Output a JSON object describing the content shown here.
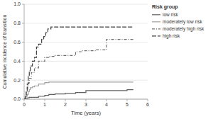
{
  "chart_data": {
    "type": "step",
    "xlabel": "Time (years)",
    "ylabel": "Cumulative incidence of transition",
    "xlim": [
      0,
      6
    ],
    "ylim": [
      0,
      1.0
    ],
    "xticks": [
      0,
      1,
      2,
      3,
      4,
      5,
      6
    ],
    "yticks": [
      {
        "value": 0.0,
        "label": "0.0"
      },
      0.2,
      0.4,
      0.6,
      0.8,
      {
        "value": 1.0,
        "label": "1.0"
      }
    ],
    "grid": true,
    "legend": "upper right",
    "legend_title": "Risk group",
    "series": [
      {
        "name": "low risk",
        "color": "#606060",
        "line_style": "solid",
        "x": [
          0,
          0.05,
          0.08,
          0.12,
          0.18,
          0.25,
          0.35,
          0.5,
          0.7,
          1.0,
          1.2,
          1.5,
          2.0,
          2.5,
          3.0,
          3.5,
          4.0,
          5.0,
          5.3
        ],
        "values": [
          0,
          0.005,
          0.01,
          0.01,
          0.015,
          0.02,
          0.02,
          0.02,
          0.03,
          0.04,
          0.05,
          0.055,
          0.06,
          0.07,
          0.09,
          0.09,
          0.09,
          0.1,
          0.1
        ]
      },
      {
        "name": "moderately low risk",
        "color": "#a0a0a0",
        "line_style": "solid",
        "x": [
          0,
          0.05,
          0.1,
          0.15,
          0.2,
          0.25,
          0.3,
          0.4,
          0.5,
          0.7,
          1.0,
          1.2,
          1.5,
          2.0,
          2.5,
          3.0,
          3.5,
          4.0,
          5.0,
          5.3
        ],
        "values": [
          0,
          0.01,
          0.03,
          0.05,
          0.08,
          0.1,
          0.12,
          0.13,
          0.14,
          0.16,
          0.175,
          0.18,
          0.18,
          0.18,
          0.18,
          0.18,
          0.18,
          0.18,
          0.18,
          0.18
        ]
      },
      {
        "name": "moderately high risk",
        "color": "#707070",
        "line_style": "dashdot",
        "x": [
          0,
          0.05,
          0.1,
          0.15,
          0.2,
          0.25,
          0.35,
          0.5,
          0.7,
          1.0,
          1.2,
          1.5,
          2.0,
          2.5,
          2.8,
          3.0,
          3.5,
          4.0,
          4.5,
          5.0,
          5.3
        ],
        "values": [
          0,
          0.03,
          0.07,
          0.12,
          0.17,
          0.22,
          0.28,
          0.33,
          0.4,
          0.44,
          0.45,
          0.46,
          0.46,
          0.5,
          0.51,
          0.51,
          0.52,
          0.63,
          0.63,
          0.63,
          0.63
        ]
      },
      {
        "name": "high risk",
        "color": "#404040",
        "line_style": "dashed",
        "x": [
          0,
          0.05,
          0.1,
          0.15,
          0.2,
          0.25,
          0.3,
          0.4,
          0.5,
          0.6,
          0.7,
          0.85,
          0.95,
          1.05,
          1.15,
          1.3,
          1.5,
          2.0,
          2.5,
          3.0,
          3.5,
          4.0,
          5.0,
          5.3
        ],
        "values": [
          0,
          0.04,
          0.09,
          0.16,
          0.24,
          0.3,
          0.35,
          0.4,
          0.44,
          0.55,
          0.58,
          0.63,
          0.66,
          0.7,
          0.74,
          0.76,
          0.76,
          0.76,
          0.76,
          0.76,
          0.76,
          0.76,
          0.76,
          0.76
        ]
      }
    ]
  }
}
